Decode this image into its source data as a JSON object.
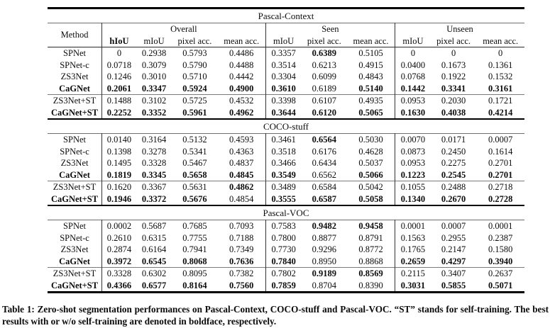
{
  "caption": "Table 1: Zero-shot segmentation performances on Pascal-Context, COCO-stuff and Pascal-VOC. “ST” stands for self-training. The best results with or w/o self-training are denoted in boldface, respectively.",
  "table": {
    "header": {
      "method_label": "Method",
      "groups": [
        {
          "label": "Overall",
          "span": 4
        },
        {
          "label": "Seen",
          "span": 3
        },
        {
          "label": "Unseen",
          "span": 3
        }
      ],
      "columns": [
        {
          "label": "hIoU",
          "bold": true
        },
        {
          "label": "mIoU",
          "bold": false
        },
        {
          "label": "pixel acc.",
          "bold": false
        },
        {
          "label": "mean acc.",
          "bold": false
        },
        {
          "label": "mIoU",
          "bold": false
        },
        {
          "label": "pixel acc.",
          "bold": false
        },
        {
          "label": "mean acc.",
          "bold": false
        },
        {
          "label": "mIoU",
          "bold": false
        },
        {
          "label": "pixel acc.",
          "bold": false
        },
        {
          "label": "mean acc.",
          "bold": false
        }
      ]
    },
    "sections": [
      {
        "title": "Pascal-Context",
        "groups": [
          {
            "rows": [
              {
                "method": "SPNet",
                "method_bold": false,
                "cells": [
                  "0",
                  "0.2938",
                  "0.5793",
                  "0.4486",
                  "0.3357",
                  "0.6389",
                  "0.5105",
                  "0",
                  "0",
                  "0"
                ],
                "bold": [
                  0,
                  0,
                  0,
                  0,
                  0,
                  1,
                  0,
                  0,
                  0,
                  0
                ]
              },
              {
                "method": "SPNet-c",
                "method_bold": false,
                "cells": [
                  "0.0718",
                  "0.3079",
                  "0.5790",
                  "0.4488",
                  "0.3514",
                  "0.6213",
                  "0.4915",
                  "0.0400",
                  "0.1673",
                  "0.1361"
                ],
                "bold": [
                  0,
                  0,
                  0,
                  0,
                  0,
                  0,
                  0,
                  0,
                  0,
                  0
                ]
              },
              {
                "method": "ZS3Net",
                "method_bold": false,
                "cells": [
                  "0.1246",
                  "0.3010",
                  "0.5710",
                  "0.4442",
                  "0.3304",
                  "0.6099",
                  "0.4843",
                  "0.0768",
                  "0.1922",
                  "0.1532"
                ],
                "bold": [
                  0,
                  0,
                  0,
                  0,
                  0,
                  0,
                  0,
                  0,
                  0,
                  0
                ]
              },
              {
                "method": "CaGNet",
                "method_bold": true,
                "cells": [
                  "0.2061",
                  "0.3347",
                  "0.5924",
                  "0.4900",
                  "0.3610",
                  "0.6189",
                  "0.5140",
                  "0.1442",
                  "0.3341",
                  "0.3161"
                ],
                "bold": [
                  1,
                  1,
                  1,
                  1,
                  1,
                  0,
                  1,
                  1,
                  1,
                  1
                ]
              }
            ]
          },
          {
            "rows": [
              {
                "method": "ZS3Net+ST",
                "method_bold": false,
                "cells": [
                  "0.1488",
                  "0.3102",
                  "0.5725",
                  "0.4532",
                  "0.3398",
                  "0.6107",
                  "0.4935",
                  "0.0953",
                  "0.2030",
                  "0.1721"
                ],
                "bold": [
                  0,
                  0,
                  0,
                  0,
                  0,
                  0,
                  0,
                  0,
                  0,
                  0
                ]
              },
              {
                "method": "CaGNet+ST",
                "method_bold": true,
                "cells": [
                  "0.2252",
                  "0.3352",
                  "0.5961",
                  "0.4962",
                  "0.3644",
                  "0.6120",
                  "0.5065",
                  "0.1630",
                  "0.4038",
                  "0.4214"
                ],
                "bold": [
                  1,
                  1,
                  1,
                  1,
                  1,
                  1,
                  1,
                  1,
                  1,
                  1
                ]
              }
            ]
          }
        ]
      },
      {
        "title": "COCO-stuff",
        "groups": [
          {
            "rows": [
              {
                "method": "SPNet",
                "method_bold": false,
                "cells": [
                  "0.0140",
                  "0.3164",
                  "0.5132",
                  "0.4593",
                  "0.3461",
                  "0.6564",
                  "0.5030",
                  "0.0070",
                  "0.0171",
                  "0.0007"
                ],
                "bold": [
                  0,
                  0,
                  0,
                  0,
                  0,
                  1,
                  0,
                  0,
                  0,
                  0
                ]
              },
              {
                "method": "SPNet-c",
                "method_bold": false,
                "cells": [
                  "0.1398",
                  "0.3278",
                  "0.5341",
                  "0.4363",
                  "0.3518",
                  "0.6176",
                  "0.4628",
                  "0.0873",
                  "0.2450",
                  "0.1614"
                ],
                "bold": [
                  0,
                  0,
                  0,
                  0,
                  0,
                  0,
                  0,
                  0,
                  0,
                  0
                ]
              },
              {
                "method": "ZS3Net",
                "method_bold": false,
                "cells": [
                  "0.1495",
                  "0.3328",
                  "0.5467",
                  "0.4837",
                  "0.3466",
                  "0.6434",
                  "0.5037",
                  "0.0953",
                  "0.2275",
                  "0.2701"
                ],
                "bold": [
                  0,
                  0,
                  0,
                  0,
                  0,
                  0,
                  0,
                  0,
                  0,
                  0
                ]
              },
              {
                "method": "CaGNet",
                "method_bold": true,
                "cells": [
                  "0.1819",
                  "0.3345",
                  "0.5658",
                  "0.4845",
                  "0.3549",
                  "0.6562",
                  "0.5066",
                  "0.1223",
                  "0.2545",
                  "0.2701"
                ],
                "bold": [
                  1,
                  1,
                  1,
                  1,
                  1,
                  0,
                  1,
                  1,
                  1,
                  1
                ]
              }
            ]
          },
          {
            "rows": [
              {
                "method": "ZS3Net+ST",
                "method_bold": false,
                "cells": [
                  "0.1620",
                  "0.3367",
                  "0.5631",
                  "0.4862",
                  "0.3489",
                  "0.6584",
                  "0.5042",
                  "0.1055",
                  "0.2488",
                  "0.2718"
                ],
                "bold": [
                  0,
                  0,
                  0,
                  1,
                  0,
                  0,
                  0,
                  0,
                  0,
                  0
                ]
              },
              {
                "method": "CaGNet+ST",
                "method_bold": true,
                "cells": [
                  "0.1946",
                  "0.3372",
                  "0.5676",
                  "0.4854",
                  "0.3555",
                  "0.6587",
                  "0.5058",
                  "0.1340",
                  "0.2670",
                  "0.2728"
                ],
                "bold": [
                  1,
                  1,
                  1,
                  0,
                  1,
                  1,
                  1,
                  1,
                  1,
                  1
                ]
              }
            ]
          }
        ]
      },
      {
        "title": "Pascal-VOC",
        "groups": [
          {
            "rows": [
              {
                "method": "SPNet",
                "method_bold": false,
                "cells": [
                  "0.0002",
                  "0.5687",
                  "0.7685",
                  "0.7093",
                  "0.7583",
                  "0.9482",
                  "0.9458",
                  "0.0001",
                  "0.0007",
                  "0.0001"
                ],
                "bold": [
                  0,
                  0,
                  0,
                  0,
                  0,
                  1,
                  1,
                  0,
                  0,
                  0
                ]
              },
              {
                "method": "SPNet-c",
                "method_bold": false,
                "cells": [
                  "0.2610",
                  "0.6315",
                  "0.7755",
                  "0.7188",
                  "0.7800",
                  "0.8877",
                  "0.8791",
                  "0.1563",
                  "0.2955",
                  "0.2387"
                ],
                "bold": [
                  0,
                  0,
                  0,
                  0,
                  0,
                  0,
                  0,
                  0,
                  0,
                  0
                ]
              },
              {
                "method": "ZS3Net",
                "method_bold": false,
                "cells": [
                  "0.2874",
                  "0.6164",
                  "0.7941",
                  "0.7349",
                  "0.7730",
                  "0.9296",
                  "0.8772",
                  "0.1765",
                  "0.2147",
                  "0.1580"
                ],
                "bold": [
                  0,
                  0,
                  0,
                  0,
                  0,
                  0,
                  0,
                  0,
                  0,
                  0
                ]
              },
              {
                "method": "CaGNet",
                "method_bold": true,
                "cells": [
                  "0.3972",
                  "0.6545",
                  "0.8068",
                  "0.7636",
                  "0.7840",
                  "0.8950",
                  "0.8868",
                  "0.2659",
                  "0.4297",
                  "0.3940"
                ],
                "bold": [
                  1,
                  1,
                  1,
                  1,
                  1,
                  0,
                  0,
                  1,
                  1,
                  1
                ]
              }
            ]
          },
          {
            "rows": [
              {
                "method": "ZS3Net+ST",
                "method_bold": false,
                "cells": [
                  "0.3328",
                  "0.6302",
                  "0.8095",
                  "0.7382",
                  "0.7802",
                  "0.9189",
                  "0.8569",
                  "0.2115",
                  "0.3407",
                  "0.2637"
                ],
                "bold": [
                  0,
                  0,
                  0,
                  0,
                  0,
                  1,
                  1,
                  0,
                  0,
                  0
                ]
              },
              {
                "method": "CaGNet+ST",
                "method_bold": true,
                "cells": [
                  "0.4366",
                  "0.6577",
                  "0.8164",
                  "0.7560",
                  "0.7859",
                  "0.8704",
                  "0.8390",
                  "0.3031",
                  "0.5855",
                  "0.5071"
                ],
                "bold": [
                  1,
                  1,
                  1,
                  1,
                  1,
                  0,
                  0,
                  1,
                  1,
                  1
                ]
              }
            ]
          }
        ]
      }
    ]
  }
}
